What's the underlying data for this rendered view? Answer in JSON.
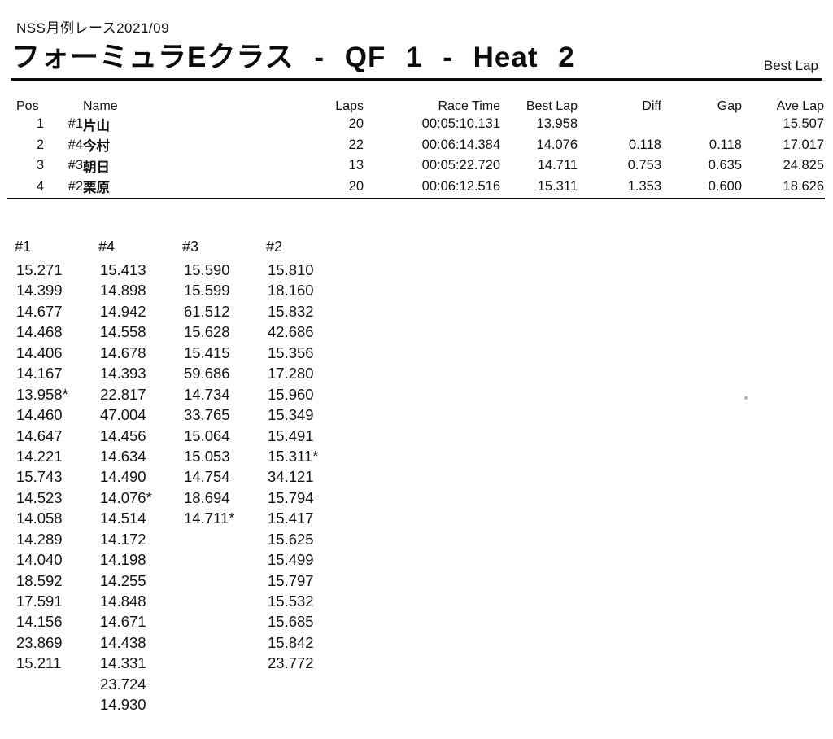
{
  "page": {
    "subtitle": "NSS月例レース2021/09",
    "title": "フォーミュラEクラス - QF 1 - Heat 2",
    "best_lap_label": "Best Lap"
  },
  "results": {
    "headers": {
      "pos": "Pos",
      "name": "Name",
      "laps": "Laps",
      "race_time": "Race Time",
      "best_lap": "Best Lap",
      "diff": "Diff",
      "gap": "Gap",
      "ave_lap": "Ave Lap"
    },
    "rows": [
      {
        "pos": "1",
        "no": "#1",
        "name": "片山",
        "laps": "20",
        "race_time": "00:05:10.131",
        "best_lap": "13.958",
        "diff": "",
        "gap": "",
        "ave_lap": "15.507"
      },
      {
        "pos": "2",
        "no": "#4",
        "name": "今村",
        "laps": "22",
        "race_time": "00:06:14.384",
        "best_lap": "14.076",
        "diff": "0.118",
        "gap": "0.118",
        "ave_lap": "17.017"
      },
      {
        "pos": "3",
        "no": "#3",
        "name": "朝日",
        "laps": "13",
        "race_time": "00:05:22.720",
        "best_lap": "14.711",
        "diff": "0.753",
        "gap": "0.635",
        "ave_lap": "24.825"
      },
      {
        "pos": "4",
        "no": "#2",
        "name": "栗原",
        "laps": "20",
        "race_time": "00:06:12.516",
        "best_lap": "15.311",
        "diff": "1.353",
        "gap": "0.600",
        "ave_lap": "18.626"
      }
    ]
  },
  "lap_times": {
    "columns": [
      {
        "header": "#1",
        "values": [
          "15.271",
          "14.399",
          "14.677",
          "14.468",
          "14.406",
          "14.167",
          "13.958*",
          "14.460",
          "14.647",
          "14.221",
          "15.743",
          "14.523",
          "14.058",
          "14.289",
          "14.040",
          "18.592",
          "17.591",
          "14.156",
          "23.869",
          "15.211"
        ]
      },
      {
        "header": "#4",
        "values": [
          "15.413",
          "14.898",
          "14.942",
          "14.558",
          "14.678",
          "14.393",
          "22.817",
          "47.004",
          "14.456",
          "14.634",
          "14.490",
          "14.076*",
          "14.514",
          "14.172",
          "14.198",
          "14.255",
          "14.848",
          "14.671",
          "14.438",
          "14.331",
          "23.724",
          "14.930"
        ]
      },
      {
        "header": "#3",
        "values": [
          "15.590",
          "15.599",
          "61.512",
          "15.628",
          "15.415",
          "59.686",
          "14.734",
          "33.765",
          "15.064",
          "15.053",
          "14.754",
          "18.694",
          "14.711*"
        ]
      },
      {
        "header": "#2",
        "values": [
          "15.810",
          "18.160",
          "15.832",
          "42.686",
          "15.356",
          "17.280",
          "15.960",
          "15.349",
          "15.491",
          "15.311*",
          "34.121",
          "15.794",
          "15.417",
          "15.625",
          "15.499",
          "15.797",
          "15.532",
          "15.685",
          "15.842",
          "23.772"
        ]
      }
    ]
  }
}
